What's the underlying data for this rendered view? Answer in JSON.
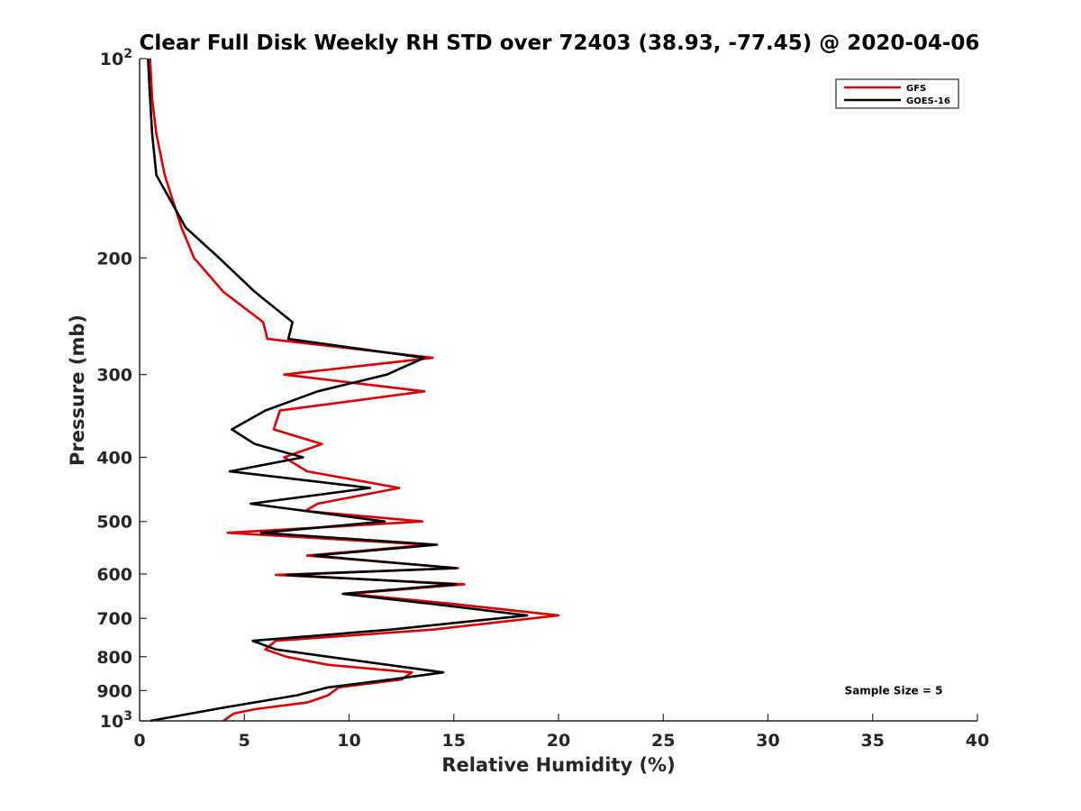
{
  "chart_data": {
    "type": "line",
    "title": "Clear Full Disk Weekly RH STD over 72403 (38.93, -77.45) @ 2020-04-06",
    "xlabel": "Relative Humidity (%)",
    "ylabel": "Pressure (mb)",
    "xlim": [
      0,
      40
    ],
    "ylim": [
      100,
      1000
    ],
    "y_scale": "log",
    "y_reversed": true,
    "grid": false,
    "legend_position": "top-right",
    "x_ticks": [
      {
        "value": 0,
        "label": "0"
      },
      {
        "value": 5,
        "label": "5"
      },
      {
        "value": 10,
        "label": "10"
      },
      {
        "value": 15,
        "label": "15"
      },
      {
        "value": 20,
        "label": "20"
      },
      {
        "value": 25,
        "label": "25"
      },
      {
        "value": 30,
        "label": "30"
      },
      {
        "value": 35,
        "label": "35"
      },
      {
        "value": 40,
        "label": "40"
      }
    ],
    "y_ticks": [
      {
        "value": 100,
        "label": "10",
        "sup": "2"
      },
      {
        "value": 200,
        "label": "200"
      },
      {
        "value": 300,
        "label": "300"
      },
      {
        "value": 400,
        "label": "400"
      },
      {
        "value": 500,
        "label": "500"
      },
      {
        "value": 600,
        "label": "600"
      },
      {
        "value": 700,
        "label": "700"
      },
      {
        "value": 800,
        "label": "800"
      },
      {
        "value": 900,
        "label": "900"
      },
      {
        "value": 1000,
        "label": "10",
        "sup": "3"
      }
    ],
    "series": [
      {
        "name": "GFS",
        "color": "#e00000",
        "points": [
          [
            0.5,
            100
          ],
          [
            0.6,
            115
          ],
          [
            0.8,
            130
          ],
          [
            1.2,
            150
          ],
          [
            2.0,
            180
          ],
          [
            2.6,
            200
          ],
          [
            4.0,
            225
          ],
          [
            5.9,
            250
          ],
          [
            6.1,
            265
          ],
          [
            14.0,
            283
          ],
          [
            6.9,
            300
          ],
          [
            13.6,
            318
          ],
          [
            6.7,
            340
          ],
          [
            6.4,
            363
          ],
          [
            8.7,
            382
          ],
          [
            6.9,
            400
          ],
          [
            8.0,
            420
          ],
          [
            12.4,
            445
          ],
          [
            8.5,
            470
          ],
          [
            7.9,
            482
          ],
          [
            13.5,
            500
          ],
          [
            4.2,
            520
          ],
          [
            13.8,
            542
          ],
          [
            8.0,
            563
          ],
          [
            15.2,
            588
          ],
          [
            6.5,
            602
          ],
          [
            15.5,
            622
          ],
          [
            10.0,
            643
          ],
          [
            15.0,
            666
          ],
          [
            20.0,
            693
          ],
          [
            14.0,
            728
          ],
          [
            6.5,
            757
          ],
          [
            6.0,
            780
          ],
          [
            7.0,
            800
          ],
          [
            9.0,
            823
          ],
          [
            13.0,
            845
          ],
          [
            12.5,
            866
          ],
          [
            9.5,
            890
          ],
          [
            9.0,
            915
          ],
          [
            8.0,
            938
          ],
          [
            5.5,
            960
          ],
          [
            4.5,
            975
          ],
          [
            4.0,
            1000
          ]
        ]
      },
      {
        "name": "GOES-16",
        "color": "#000000",
        "points": [
          [
            0.4,
            100
          ],
          [
            0.5,
            115
          ],
          [
            0.6,
            130
          ],
          [
            0.8,
            150
          ],
          [
            2.2,
            180
          ],
          [
            3.8,
            200
          ],
          [
            5.5,
            225
          ],
          [
            7.3,
            250
          ],
          [
            7.1,
            265
          ],
          [
            13.6,
            283
          ],
          [
            11.8,
            300
          ],
          [
            8.5,
            318
          ],
          [
            6.0,
            340
          ],
          [
            4.4,
            363
          ],
          [
            5.5,
            382
          ],
          [
            7.8,
            400
          ],
          [
            4.3,
            420
          ],
          [
            11.0,
            445
          ],
          [
            5.3,
            470
          ],
          [
            11.7,
            500
          ],
          [
            5.8,
            520
          ],
          [
            14.2,
            542
          ],
          [
            8.3,
            563
          ],
          [
            15.1,
            588
          ],
          [
            7.0,
            602
          ],
          [
            15.1,
            622
          ],
          [
            9.7,
            643
          ],
          [
            14.0,
            666
          ],
          [
            18.5,
            693
          ],
          [
            12.0,
            728
          ],
          [
            5.4,
            757
          ],
          [
            6.5,
            780
          ],
          [
            9.0,
            800
          ],
          [
            14.5,
            845
          ],
          [
            12.0,
            866
          ],
          [
            9.0,
            890
          ],
          [
            7.5,
            915
          ],
          [
            4.0,
            955
          ],
          [
            0.5,
            1000
          ]
        ]
      }
    ],
    "annotations": [
      {
        "text": "Sample Size = 5",
        "x": 36.0,
        "y": 900
      }
    ]
  }
}
